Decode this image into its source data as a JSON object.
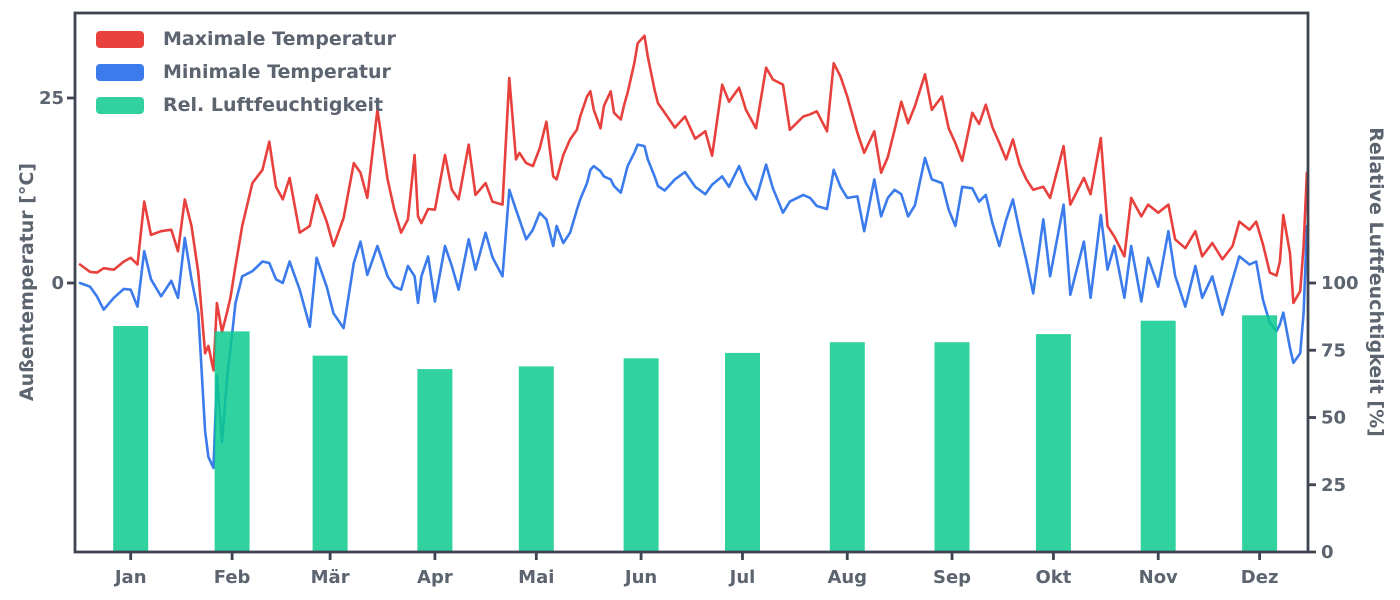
{
  "chart_data": {
    "type": "combo",
    "title": "",
    "grid": false,
    "x_axis": {
      "tick_labels": [
        "Jan",
        "Feb",
        "Mär",
        "Apr",
        "Mai",
        "Jun",
        "Jul",
        "Aug",
        "Sep",
        "Okt",
        "Nov",
        "Dez"
      ],
      "tick_days": [
        15,
        45,
        74,
        105,
        135,
        166,
        196,
        227,
        258,
        288,
        319,
        349
      ],
      "range_days": [
        0,
        365
      ]
    },
    "left_axis": {
      "label": "Außentemperatur [°C]",
      "ticks": [
        0,
        25
      ],
      "range": [
        -36.3,
        36.5
      ]
    },
    "right_axis": {
      "label": "Relative Luftfeuchtigkeit [%]",
      "ticks": [
        0,
        25,
        50,
        75,
        100
      ],
      "range": [
        0,
        200
      ]
    },
    "legend": {
      "position": "upper-left",
      "entries": [
        {
          "label": "Maximale Temperatur",
          "color": "#e8413d"
        },
        {
          "label": "Minimale Temperatur",
          "color": "#3b7bec"
        },
        {
          "label": "Rel. Luftfeuchtigkeit",
          "color": "#31d29f"
        }
      ]
    },
    "series": [
      {
        "name": "Maximale Temperatur",
        "type": "line",
        "axis": "left",
        "color": "#e8413d",
        "x_days": [
          0,
          3,
          5,
          7,
          10,
          13,
          15,
          17,
          19,
          21,
          24,
          27,
          29,
          31,
          33,
          35,
          36,
          37,
          38,
          39.5,
          40.5,
          42,
          43.5,
          44.5,
          46,
          48,
          51,
          54,
          56,
          58,
          60,
          62,
          65,
          68,
          70,
          73,
          75,
          78,
          81,
          83,
          85,
          88,
          91,
          93,
          95,
          97,
          99,
          100,
          101,
          103,
          105,
          108,
          110,
          112,
          115,
          117,
          120,
          122,
          125,
          127,
          129,
          130,
          132,
          134,
          136,
          138,
          140,
          141,
          143,
          145,
          147,
          148,
          150,
          151,
          152,
          154,
          155,
          157,
          158,
          160,
          161,
          162,
          164,
          165,
          167,
          168,
          170,
          171,
          173,
          176,
          179,
          182,
          185,
          187,
          190,
          192,
          195,
          197,
          200,
          203,
          205,
          208,
          210,
          214,
          216,
          218,
          221,
          223,
          225,
          227,
          230,
          232,
          235,
          237,
          239,
          241,
          243,
          245,
          247,
          250,
          252,
          255,
          257,
          259,
          261,
          264,
          266,
          268,
          270,
          272,
          274,
          276,
          278,
          280,
          282,
          285,
          287,
          291,
          293,
          297,
          299,
          302,
          304,
          306,
          309,
          311,
          314,
          316,
          319,
          322,
          324,
          327,
          330,
          332,
          335,
          338,
          341,
          343,
          346,
          348,
          350,
          352,
          354,
          355,
          356,
          358,
          359,
          361,
          362,
          363
        ],
        "values": [
          2.5,
          1.5,
          1.4,
          2.0,
          1.8,
          2.9,
          3.4,
          2.5,
          11.0,
          6.5,
          7.0,
          7.2,
          4.3,
          11.3,
          7.7,
          1.4,
          -4.0,
          -9.5,
          -8.5,
          -11.8,
          -2.7,
          -6.6,
          -4.0,
          -2.0,
          2.3,
          7.7,
          13.5,
          15.3,
          19.1,
          13.0,
          11.3,
          14.2,
          6.8,
          7.7,
          11.9,
          8.3,
          5.0,
          8.8,
          16.2,
          14.9,
          11.5,
          23.4,
          14.0,
          9.9,
          6.8,
          8.6,
          17.3,
          9.0,
          8.1,
          10.0,
          9.9,
          17.3,
          12.6,
          11.3,
          18.7,
          11.9,
          13.5,
          11.0,
          10.6,
          27.7,
          16.7,
          17.6,
          16.2,
          15.8,
          18.2,
          21.8,
          14.4,
          14.0,
          17.3,
          19.4,
          20.7,
          22.5,
          25.2,
          25.9,
          23.4,
          20.9,
          23.9,
          25.9,
          23.0,
          22.1,
          24.1,
          25.7,
          29.7,
          32.4,
          33.4,
          30.6,
          26.1,
          24.3,
          23.0,
          21.0,
          22.5,
          19.5,
          20.5,
          17.2,
          26.8,
          24.5,
          26.4,
          23.4,
          20.9,
          29.1,
          27.5,
          26.8,
          20.7,
          22.5,
          22.8,
          23.2,
          20.5,
          29.7,
          27.9,
          25.2,
          20.3,
          17.6,
          20.5,
          14.9,
          17.0,
          20.7,
          24.5,
          21.6,
          23.9,
          28.2,
          23.4,
          25.2,
          20.9,
          18.9,
          16.5,
          23.0,
          21.5,
          24.1,
          21.0,
          18.9,
          16.7,
          19.4,
          16.0,
          14.0,
          12.6,
          13.0,
          11.5,
          18.5,
          10.6,
          14.2,
          12.0,
          19.6,
          7.7,
          6.3,
          3.6,
          11.5,
          9.0,
          10.6,
          9.5,
          10.6,
          5.9,
          4.7,
          7.0,
          3.6,
          5.4,
          3.2,
          5.0,
          8.3,
          7.2,
          8.3,
          5.2,
          1.4,
          1.0,
          2.9,
          9.2,
          4.0,
          -2.7,
          -1.1,
          5.0,
          14.9
        ]
      },
      {
        "name": "Minimale Temperatur",
        "type": "line",
        "axis": "left",
        "color": "#3b7bec",
        "x_days": [
          0,
          3,
          5,
          7,
          10,
          13,
          15,
          17,
          19,
          21,
          24,
          27,
          29,
          31,
          33,
          35,
          36,
          37,
          38,
          39.5,
          40.5,
          42,
          43.5,
          44.5,
          46,
          48,
          51,
          54,
          56,
          58,
          60,
          62,
          65,
          68,
          70,
          73,
          75,
          78,
          81,
          83,
          85,
          88,
          91,
          93,
          95,
          97,
          99,
          100,
          101,
          103,
          105,
          108,
          110,
          112,
          115,
          117,
          120,
          122,
          125,
          127,
          129,
          130,
          132,
          134,
          136,
          138,
          140,
          141,
          143,
          145,
          147,
          148,
          150,
          151,
          152,
          154,
          155,
          157,
          158,
          160,
          161,
          162,
          164,
          165,
          167,
          168,
          170,
          171,
          173,
          176,
          179,
          182,
          185,
          187,
          190,
          192,
          195,
          197,
          200,
          203,
          205,
          208,
          210,
          214,
          216,
          218,
          221,
          223,
          225,
          227,
          230,
          232,
          235,
          237,
          239,
          241,
          243,
          245,
          247,
          250,
          252,
          255,
          257,
          259,
          261,
          264,
          266,
          268,
          270,
          272,
          274,
          276,
          278,
          280,
          282,
          285,
          287,
          291,
          293,
          297,
          299,
          302,
          304,
          306,
          309,
          311,
          314,
          316,
          319,
          322,
          324,
          327,
          330,
          332,
          335,
          338,
          341,
          343,
          346,
          348,
          350,
          352,
          354,
          355,
          356,
          358,
          359,
          361,
          362,
          363
        ],
        "values": [
          0.0,
          -0.5,
          -1.8,
          -3.6,
          -2.0,
          -0.8,
          -0.9,
          -3.2,
          4.3,
          0.5,
          -1.8,
          0.3,
          -2.0,
          6.1,
          0.5,
          -4.1,
          -12.0,
          -20.0,
          -23.5,
          -25.0,
          -12.5,
          -21.5,
          -13.0,
          -9.0,
          -2.7,
          0.9,
          1.6,
          2.9,
          2.7,
          0.5,
          0.0,
          2.9,
          -0.9,
          -5.9,
          3.4,
          -0.5,
          -4.1,
          -6.1,
          2.7,
          5.6,
          1.1,
          5.0,
          0.9,
          -0.5,
          -0.9,
          2.3,
          0.9,
          -2.7,
          0.9,
          3.6,
          -2.5,
          5.0,
          2.3,
          -0.9,
          5.9,
          1.8,
          6.8,
          3.5,
          0.9,
          12.6,
          9.9,
          8.6,
          5.9,
          7.2,
          9.5,
          8.6,
          5.0,
          7.7,
          5.4,
          6.8,
          9.9,
          11.3,
          13.5,
          15.3,
          15.8,
          15.1,
          14.4,
          14.0,
          13.1,
          12.2,
          14.0,
          15.8,
          17.6,
          18.7,
          18.5,
          16.7,
          14.4,
          13.1,
          12.5,
          14.0,
          15.0,
          13.0,
          12.0,
          13.3,
          14.4,
          13.0,
          15.8,
          13.5,
          11.3,
          16.0,
          12.8,
          9.5,
          11.0,
          11.9,
          11.5,
          10.4,
          10.0,
          15.3,
          13.0,
          11.5,
          11.7,
          7.0,
          14.0,
          9.0,
          11.5,
          12.6,
          12.0,
          9.0,
          10.5,
          16.9,
          14.0,
          13.5,
          9.9,
          7.7,
          13.0,
          12.8,
          11.0,
          11.9,
          8.0,
          5.0,
          8.5,
          11.3,
          7.0,
          3.0,
          -1.4,
          8.6,
          0.9,
          10.6,
          -1.6,
          5.6,
          -2.0,
          9.2,
          1.8,
          5.0,
          -2.0,
          5.0,
          -2.5,
          3.4,
          -0.5,
          7.0,
          1.0,
          -3.2,
          2.3,
          -2.0,
          0.9,
          -4.3,
          0.5,
          3.6,
          2.5,
          2.9,
          -2.3,
          -5.4,
          -6.5,
          -5.6,
          -4.0,
          -8.8,
          -10.8,
          -9.5,
          -4.1,
          7.7
        ]
      },
      {
        "name": "Rel. Luftfeuchtigkeit",
        "type": "bar",
        "axis": "right",
        "color": "#31d29f",
        "bar_fill": "#0ccا8e",
        "months": [
          "Jan",
          "Feb",
          "Mär",
          "Apr",
          "Mai",
          "Jun",
          "Jul",
          "Aug",
          "Sep",
          "Okt",
          "Nov",
          "Dez"
        ],
        "values": [
          84,
          82,
          73,
          68,
          69,
          72,
          74,
          78,
          78,
          81,
          86,
          88
        ]
      }
    ],
    "colors": {
      "spine": "#3e4450",
      "tick_text": "#5c6470",
      "background": "#ffffff"
    }
  }
}
